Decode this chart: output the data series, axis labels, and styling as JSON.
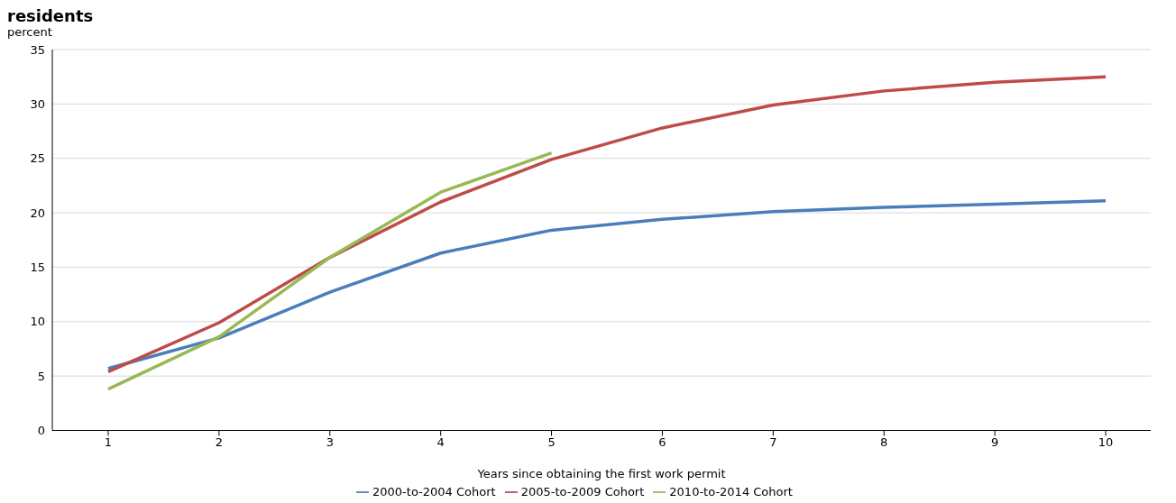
{
  "chart_data": {
    "type": "line",
    "title": "residents",
    "ylabel": "percent",
    "xlabel": "Years since obtaining the first work permit",
    "categories": [
      "1",
      "2",
      "3",
      "4",
      "5",
      "6",
      "7",
      "8",
      "9",
      "10"
    ],
    "series": [
      {
        "name": "2000-to-2004 Cohort",
        "color": "#4a7ebb",
        "values": [
          5.7,
          8.5,
          12.7,
          16.3,
          18.4,
          19.4,
          20.1,
          20.5,
          20.8,
          21.1
        ]
      },
      {
        "name": "2005-to-2009 Cohort",
        "color": "#be4b48",
        "values": [
          5.4,
          9.9,
          15.9,
          21.0,
          24.9,
          27.8,
          29.9,
          31.2,
          32.0,
          32.5
        ]
      },
      {
        "name": "2010-to-2014 Cohort",
        "color": "#98b954",
        "values": [
          3.8,
          8.6,
          15.9,
          21.9,
          25.5,
          null,
          null,
          null,
          null,
          null
        ]
      }
    ],
    "ylim": [
      0,
      35
    ],
    "yticks": [
      0,
      5,
      10,
      15,
      20,
      25,
      30,
      35
    ],
    "grid": "y",
    "legend": "bottom",
    "marker": "none",
    "line_style": "solid"
  }
}
